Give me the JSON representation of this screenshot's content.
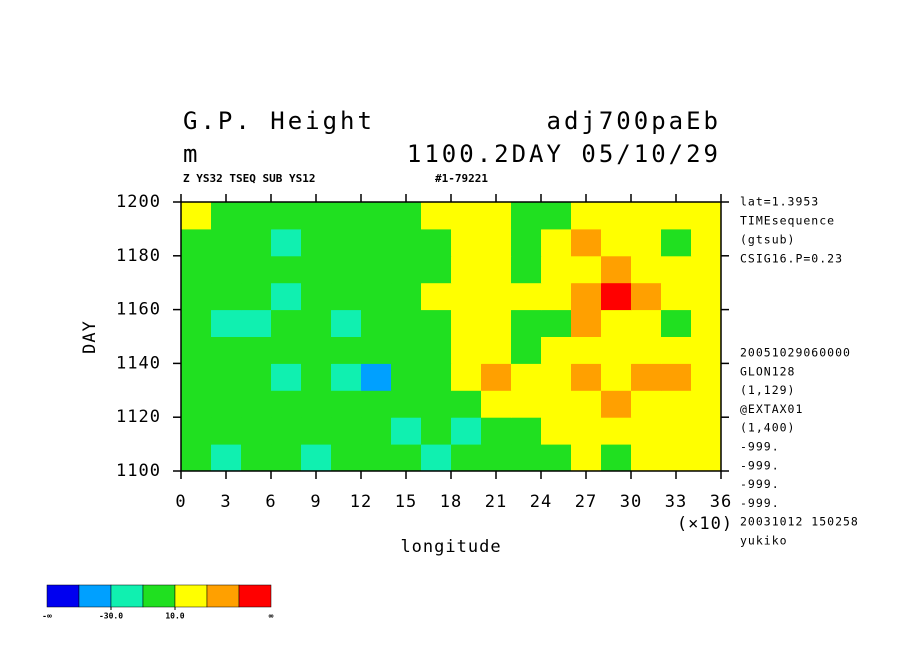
{
  "chart_data": {
    "type": "heatmap",
    "title": "G.P. Height",
    "title_right": "adj700paEb",
    "units": "m",
    "subtitle_right": "1100.2DAY 05/10/29",
    "info_left": "Z YS32 TSEQ SUB YS12",
    "info_right": "#1-79221",
    "x_label": "longitude",
    "x_multiplier": "(×10)",
    "y_label": "DAY",
    "xlim": [
      0,
      36
    ],
    "xticks": [
      0,
      3,
      6,
      9,
      12,
      15,
      18,
      21,
      24,
      27,
      30,
      33,
      36
    ],
    "ylim": [
      1100,
      1200
    ],
    "yticks": [
      1100,
      1120,
      1140,
      1160,
      1180,
      1200
    ],
    "x": [
      1,
      3,
      5,
      7,
      9,
      11,
      13,
      15,
      17,
      19,
      21,
      23,
      25,
      27,
      29,
      31,
      33,
      35
    ],
    "y": [
      1105,
      1115,
      1125,
      1135,
      1145,
      1155,
      1165,
      1175,
      1185,
      1195
    ],
    "z": [
      [
        5,
        -15,
        0,
        -5,
        -15,
        -10,
        -5,
        0,
        -15,
        -5,
        5,
        -5,
        5,
        15,
        5,
        20,
        15,
        25
      ],
      [
        0,
        -5,
        5,
        -5,
        -10,
        -5,
        0,
        -15,
        -5,
        -20,
        0,
        5,
        15,
        10,
        20,
        25,
        15,
        10
      ],
      [
        0,
        5,
        -5,
        0,
        -5,
        5,
        0,
        -5,
        -10,
        5,
        20,
        25,
        15,
        20,
        30,
        25,
        20,
        15
      ],
      [
        -5,
        0,
        -10,
        -20,
        -5,
        -15,
        -35,
        -5,
        0,
        15,
        30,
        20,
        15,
        35,
        25,
        40,
        30,
        20
      ],
      [
        5,
        0,
        -5,
        -10,
        -5,
        0,
        -5,
        0,
        5,
        20,
        15,
        5,
        10,
        20,
        25,
        15,
        10,
        20
      ],
      [
        -10,
        -15,
        -20,
        -5,
        -10,
        -15,
        -5,
        -10,
        0,
        15,
        10,
        0,
        -5,
        35,
        20,
        15,
        5,
        10
      ],
      [
        0,
        5,
        -5,
        -15,
        -10,
        0,
        5,
        5,
        10,
        25,
        20,
        15,
        25,
        40,
        60,
        30,
        20,
        15
      ],
      [
        5,
        0,
        -5,
        0,
        -10,
        5,
        0,
        5,
        5,
        25,
        15,
        5,
        10,
        25,
        30,
        20,
        15,
        10
      ],
      [
        0,
        -5,
        -10,
        -15,
        -5,
        0,
        -10,
        -5,
        5,
        20,
        10,
        0,
        10,
        35,
        25,
        15,
        5,
        15
      ],
      [
        10,
        0,
        5,
        -5,
        0,
        5,
        0,
        5,
        15,
        25,
        15,
        5,
        5,
        25,
        20,
        15,
        10,
        20
      ]
    ],
    "levels": [
      -50,
      -30,
      -10,
      10,
      30,
      50
    ],
    "colors": [
      "#0000f0",
      "#00a0ff",
      "#10f0b0",
      "#20e020",
      "#ffff00",
      "#ffa000",
      "#ff0000"
    ],
    "colorbar_ticks": [
      {
        "value": -30,
        "label": "-30.0"
      },
      {
        "value": 10,
        "label": "10.0"
      }
    ],
    "colorbar_low": "-∞",
    "colorbar_high": "∞",
    "notes_top": [
      "lat=1.3953",
      "TIMEsequence",
      "(gtsub)",
      "CSIG16.P=0.23"
    ],
    "notes_bottom": [
      "20051029060000",
      "GLON128",
      "(1,129)",
      "@EXTAX01",
      "(1,400)",
      "-999.",
      "-999.",
      "-999.",
      "-999.",
      "20031012 150258",
      "yukiko"
    ]
  }
}
